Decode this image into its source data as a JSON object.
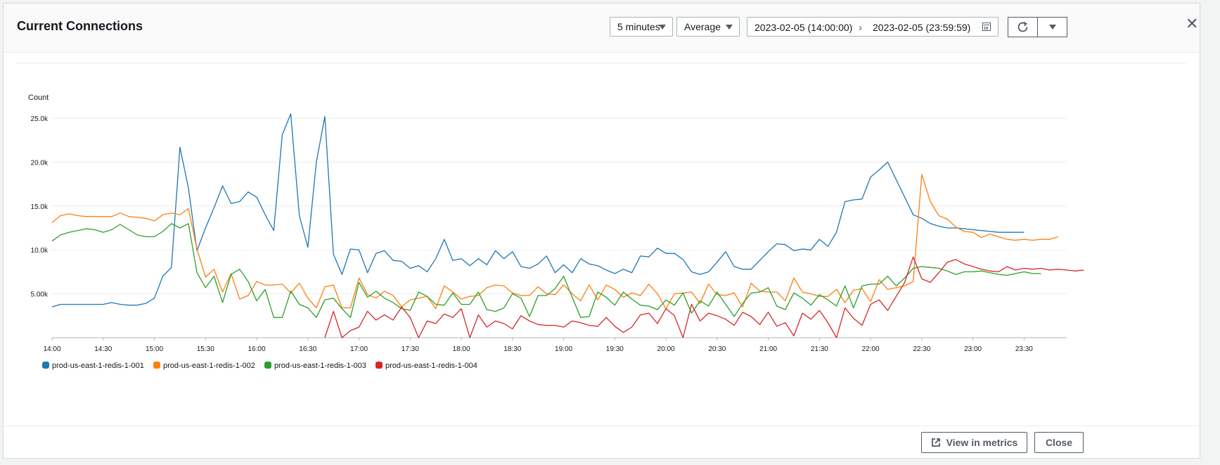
{
  "modal": {
    "title": "Current Connections",
    "period": "5 minutes",
    "statistic": "Average",
    "date_start": "2023-02-05 (14:00:00)",
    "date_end": "2023-02-05 (23:59:59)",
    "view_in_metrics": "View in metrics",
    "close": "Close"
  },
  "chart_data": {
    "type": "line",
    "title": "",
    "ylabel": "Count",
    "xlabel": "",
    "ylim": [
      0,
      25000
    ],
    "xlim_minutes": [
      0,
      595
    ],
    "y_ticks": [
      5000,
      10000,
      15000,
      20000,
      25000
    ],
    "y_tick_labels": [
      "5.00k",
      "10.0k",
      "15.0k",
      "20.0k",
      "25.0k"
    ],
    "x_ticks": [
      "14:00",
      "14:30",
      "15:00",
      "15:30",
      "16:00",
      "16:30",
      "17:00",
      "17:30",
      "18:00",
      "18:30",
      "19:00",
      "19:30",
      "20:00",
      "20:30",
      "21:00",
      "21:30",
      "22:00",
      "22:30",
      "23:00",
      "23:30"
    ],
    "legend_position": "bottom-left",
    "series": [
      {
        "name": "prod-us-east-1-redis-1-001",
        "color": "#1f77b4",
        "start_minute": 0,
        "step_minutes": 5,
        "values": [
          3500,
          3800,
          3800,
          3800,
          3800,
          3800,
          3800,
          4000,
          3800,
          3700,
          3700,
          3900,
          4500,
          7000,
          8000,
          21700,
          17000,
          9900,
          12500,
          14800,
          17300,
          15300,
          15500,
          16600,
          16000,
          14000,
          12200,
          23100,
          25500,
          13900,
          10300,
          20000,
          25200,
          9500,
          7200,
          10100,
          10000,
          7400,
          9600,
          9900,
          8800,
          8700,
          7900,
          8200,
          7500,
          9000,
          11200,
          8800,
          9000,
          8200,
          9000,
          8300,
          9900,
          9000,
          9800,
          8100,
          7900,
          8400,
          9300,
          7400,
          8300,
          7400,
          9000,
          8400,
          8200,
          7700,
          7300,
          7800,
          7400,
          9300,
          9200,
          10200,
          9600,
          9600,
          8900,
          7500,
          7200,
          7500,
          8600,
          9800,
          8100,
          7800,
          7800,
          8800,
          9800,
          10700,
          10600,
          9900,
          10100,
          10000,
          11200,
          10400,
          12000,
          15500,
          15700,
          15800,
          18300,
          19100,
          20000,
          18000,
          16000,
          14000,
          13600,
          13000,
          12700,
          12500,
          12500,
          12400,
          12300,
          12200,
          12100,
          12000,
          12000,
          12000,
          12000
        ]
      },
      {
        "name": "prod-us-east-1-redis-1-002",
        "color": "#ff7f0e",
        "start_minute": 0,
        "step_minutes": 5,
        "values": [
          13100,
          13900,
          14100,
          13900,
          13800,
          13800,
          13800,
          13800,
          14200,
          13800,
          13700,
          13600,
          13300,
          14000,
          14200,
          14000,
          14700,
          10100,
          6900,
          7800,
          5200,
          7300,
          4400,
          4800,
          6400,
          6000,
          6000,
          6100,
          5100,
          6200,
          4500,
          3400,
          5800,
          6000,
          3400,
          3400,
          6800,
          4900,
          4500,
          5300,
          4800,
          3500,
          4300,
          4500,
          4700,
          3300,
          5900,
          5200,
          4400,
          4700,
          4800,
          5700,
          6000,
          5900,
          5100,
          4800,
          4800,
          5800,
          5000,
          4900,
          6000,
          5000,
          4200,
          6000,
          4300,
          6000,
          5500,
          4600,
          5100,
          4800,
          6100,
          5000,
          3300,
          5000,
          5100,
          5200,
          3900,
          6100,
          4900,
          4800,
          5100,
          3500,
          6200,
          5300,
          5200,
          5200,
          4200,
          6800,
          5200,
          5000,
          4700,
          4700,
          5500,
          4000,
          5400,
          5600,
          4100,
          6600,
          5500,
          5700,
          5900,
          6400,
          18600,
          15500,
          13900,
          13500,
          12600,
          12100,
          12000,
          11400,
          11800,
          11500,
          11200,
          11100,
          11200,
          11100,
          11200,
          11200,
          11500
        ]
      },
      {
        "name": "prod-us-east-1-redis-1-003",
        "color": "#2ca02c",
        "start_minute": 0,
        "step_minutes": 5,
        "values": [
          11000,
          11700,
          12000,
          12200,
          12400,
          12300,
          12000,
          12300,
          12900,
          12300,
          11700,
          11500,
          11500,
          12100,
          13000,
          12500,
          13000,
          7400,
          5700,
          7000,
          4000,
          7200,
          7800,
          6400,
          4200,
          5500,
          2300,
          2300,
          5300,
          3800,
          3400,
          2300,
          4300,
          4500,
          3300,
          2300,
          6300,
          4600,
          5300,
          4500,
          4000,
          3300,
          3100,
          5200,
          4700,
          3800,
          3700,
          5100,
          3800,
          3800,
          5200,
          3200,
          3000,
          3400,
          5000,
          4500,
          2400,
          4800,
          4800,
          5600,
          7000,
          4600,
          2300,
          2400,
          5200,
          4600,
          3700,
          5200,
          4400,
          3700,
          3600,
          3200,
          4300,
          3700,
          5100,
          2800,
          4200,
          3600,
          5200,
          3800,
          2400,
          3900,
          5100,
          5200,
          5700,
          3600,
          3200,
          5100,
          4500,
          3700,
          4900,
          4300,
          3600,
          5900,
          3400,
          5900,
          6100,
          6100,
          7000,
          5900,
          6800,
          7900,
          8100,
          8000,
          7900,
          7600,
          7200,
          7500,
          7500,
          7600,
          7400,
          7200,
          7100,
          7300,
          7500,
          7300,
          7300
        ]
      },
      {
        "name": "prod-us-east-1-redis-1-004",
        "color": "#d62728",
        "start_minute": 160,
        "step_minutes": 5,
        "values": [
          0,
          3000,
          0,
          800,
          1200,
          3000,
          2000,
          2600,
          2000,
          3500,
          2300,
          0,
          1900,
          1600,
          2700,
          2300,
          3300,
          0,
          2600,
          1200,
          1900,
          1600,
          1000,
          2500,
          1900,
          1500,
          1400,
          1400,
          1200,
          1900,
          1700,
          1400,
          1300,
          2300,
          1300,
          600,
          1200,
          2600,
          2800,
          1600,
          3300,
          2500,
          0,
          3800,
          1900,
          2800,
          2500,
          2100,
          1400,
          2900,
          2400,
          1500,
          2900,
          1300,
          1700,
          200,
          2800,
          2100,
          3100,
          1700,
          0,
          3400,
          2200,
          1400,
          3800,
          4300,
          3100,
          4700,
          6300,
          9200,
          6700,
          6300,
          7400,
          8600,
          8900,
          8400,
          8100,
          7800,
          7600,
          7500,
          8100,
          7700,
          7900,
          7800,
          7900,
          7700,
          7800,
          7700,
          7600,
          7700
        ]
      }
    ]
  }
}
